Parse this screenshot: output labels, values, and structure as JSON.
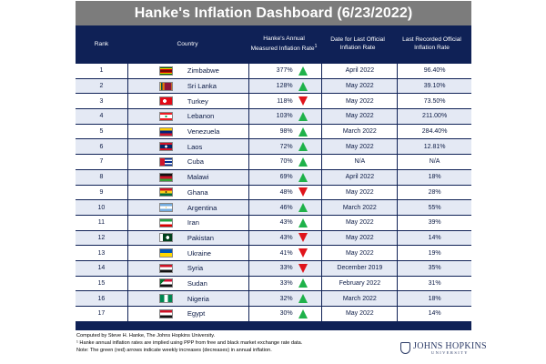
{
  "title": "Hanke's Inflation Dashboard (6/23/2022)",
  "headers": {
    "rank": "Rank",
    "country": "Country",
    "rate": "Hanke's Annual Measured Inflation Rate",
    "rate_sup": "1",
    "date": "Date for Last Official Inflation Rate",
    "last": "Last Recorded Official Inflation Rate"
  },
  "colors": {
    "up_arrow": "#1fb24a",
    "down_arrow": "#e0141b",
    "header_bg": "#0f2156",
    "title_bg": "#7c7c7c"
  },
  "rows": [
    {
      "rank": "1",
      "country": "Zimbabwe",
      "flag": "zimbabwe-flag-icon",
      "rate": "377%",
      "trend": "up",
      "date": "April 2022",
      "last": "96.40%"
    },
    {
      "rank": "2",
      "country": "Sri Lanka",
      "flag": "sri-lanka-flag-icon",
      "rate": "128%",
      "trend": "up",
      "date": "May 2022",
      "last": "39.10%"
    },
    {
      "rank": "3",
      "country": "Turkey",
      "flag": "turkey-flag-icon",
      "rate": "118%",
      "trend": "down",
      "date": "May 2022",
      "last": "73.50%"
    },
    {
      "rank": "4",
      "country": "Lebanon",
      "flag": "lebanon-flag-icon",
      "rate": "103%",
      "trend": "up",
      "date": "May 2022",
      "last": "211.00%"
    },
    {
      "rank": "5",
      "country": "Venezuela",
      "flag": "venezuela-flag-icon",
      "rate": "98%",
      "trend": "up",
      "date": "March 2022",
      "last": "284.40%"
    },
    {
      "rank": "6",
      "country": "Laos",
      "flag": "laos-flag-icon",
      "rate": "72%",
      "trend": "up",
      "date": "May 2022",
      "last": "12.81%"
    },
    {
      "rank": "7",
      "country": "Cuba",
      "flag": "cuba-flag-icon",
      "rate": "70%",
      "trend": "up",
      "date": "N/A",
      "last": "N/A"
    },
    {
      "rank": "8",
      "country": "Malawi",
      "flag": "malawi-flag-icon",
      "rate": "69%",
      "trend": "up",
      "date": "April 2022",
      "last": "18%"
    },
    {
      "rank": "9",
      "country": "Ghana",
      "flag": "ghana-flag-icon",
      "rate": "48%",
      "trend": "down",
      "date": "May 2022",
      "last": "28%"
    },
    {
      "rank": "10",
      "country": "Argentina",
      "flag": "argentina-flag-icon",
      "rate": "46%",
      "trend": "up",
      "date": "March 2022",
      "last": "55%"
    },
    {
      "rank": "11",
      "country": "Iran",
      "flag": "iran-flag-icon",
      "rate": "43%",
      "trend": "up",
      "date": "May 2022",
      "last": "39%"
    },
    {
      "rank": "12",
      "country": "Pakistan",
      "flag": "pakistan-flag-icon",
      "rate": "43%",
      "trend": "down",
      "date": "May 2022",
      "last": "14%"
    },
    {
      "rank": "13",
      "country": "Ukraine",
      "flag": "ukraine-flag-icon",
      "rate": "41%",
      "trend": "down",
      "date": "May 2022",
      "last": "19%"
    },
    {
      "rank": "14",
      "country": "Syria",
      "flag": "syria-flag-icon",
      "rate": "33%",
      "trend": "down",
      "date": "December 2019",
      "last": "35%"
    },
    {
      "rank": "15",
      "country": "Sudan",
      "flag": "sudan-flag-icon",
      "rate": "33%",
      "trend": "up",
      "date": "February 2022",
      "last": "31%"
    },
    {
      "rank": "16",
      "country": "Nigeria",
      "flag": "nigeria-flag-icon",
      "rate": "32%",
      "trend": "up",
      "date": "March 2022",
      "last": "18%"
    },
    {
      "rank": "17",
      "country": "Egypt",
      "flag": "egypt-flag-icon",
      "rate": "30%",
      "trend": "up",
      "date": "May 2022",
      "last": "14%"
    }
  ],
  "notes": [
    "Computed by Steve H. Hanke, The Johns Hopkins University.",
    "¹ Hanke annual inflation rates are implied using PPP from free and black market exchange rate data.",
    "Note: The green (red) arrows indicate weekly increases (decreases) in annual inflation."
  ],
  "logo": {
    "line1": "JOHNS HOPKINS",
    "line2": "UNIVERSITY"
  }
}
